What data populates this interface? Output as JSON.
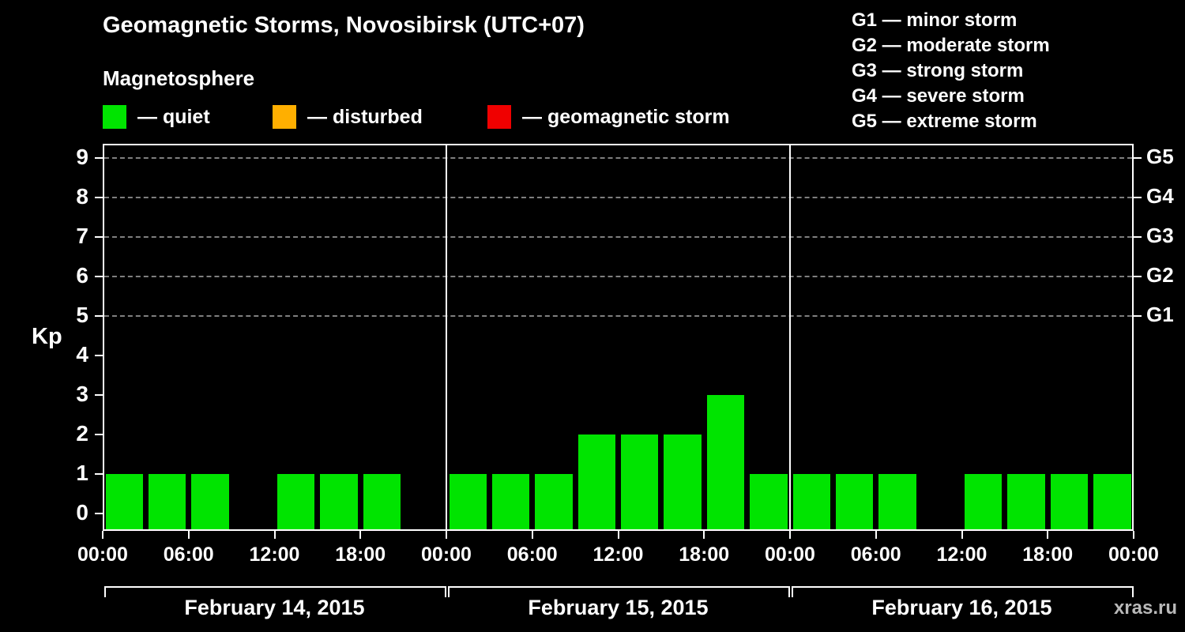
{
  "header": {
    "title": "Geomagnetic Storms, Novosibirsk (UTC+07)",
    "subtitle": "Magnetosphere"
  },
  "legend": {
    "items": [
      {
        "label": "— quiet",
        "color": "#00e400"
      },
      {
        "label": "— disturbed",
        "color": "#ffaf00"
      },
      {
        "label": "— geomagnetic storm",
        "color": "#f00000"
      }
    ]
  },
  "g_legend": [
    "G1 — minor storm",
    "G2 — moderate storm",
    "G3 — strong storm",
    "G4 — severe storm",
    "G5 — extreme storm"
  ],
  "watermark": "xras.ru",
  "chart_data": {
    "type": "bar",
    "title": "Geomagnetic Storms, Novosibirsk (UTC+07)",
    "ylabel": "Kp",
    "ylim": [
      0,
      9
    ],
    "yticks": [
      0,
      1,
      2,
      3,
      4,
      5,
      6,
      7,
      8,
      9
    ],
    "grid_kp_levels": [
      5,
      6,
      7,
      8,
      9
    ],
    "right_axis": [
      {
        "label": "G5",
        "kp": 9
      },
      {
        "label": "G4",
        "kp": 8
      },
      {
        "label": "G3",
        "kp": 7
      },
      {
        "label": "G2",
        "kp": 6
      },
      {
        "label": "G1",
        "kp": 5
      }
    ],
    "x_tick_hours": [
      "00:00",
      "06:00",
      "12:00",
      "18:00"
    ],
    "x_final_tick": "00:00",
    "hours_per_bar": 3,
    "days": [
      {
        "date": "February 14, 2015",
        "kp_values": [
          1,
          1,
          1,
          0,
          1,
          1,
          1,
          0
        ]
      },
      {
        "date": "February 15, 2015",
        "kp_values": [
          1,
          1,
          1,
          2,
          2,
          2,
          3,
          1
        ]
      },
      {
        "date": "February 16, 2015",
        "kp_values": [
          1,
          1,
          1,
          0,
          1,
          1,
          1,
          1
        ]
      }
    ],
    "colors": {
      "quiet": "#00e400",
      "disturbed": "#ffaf00",
      "storm": "#f00000",
      "grid": "#7f7f7f",
      "axis": "#ffffff",
      "background": "#000000"
    },
    "legend_position": "top"
  }
}
